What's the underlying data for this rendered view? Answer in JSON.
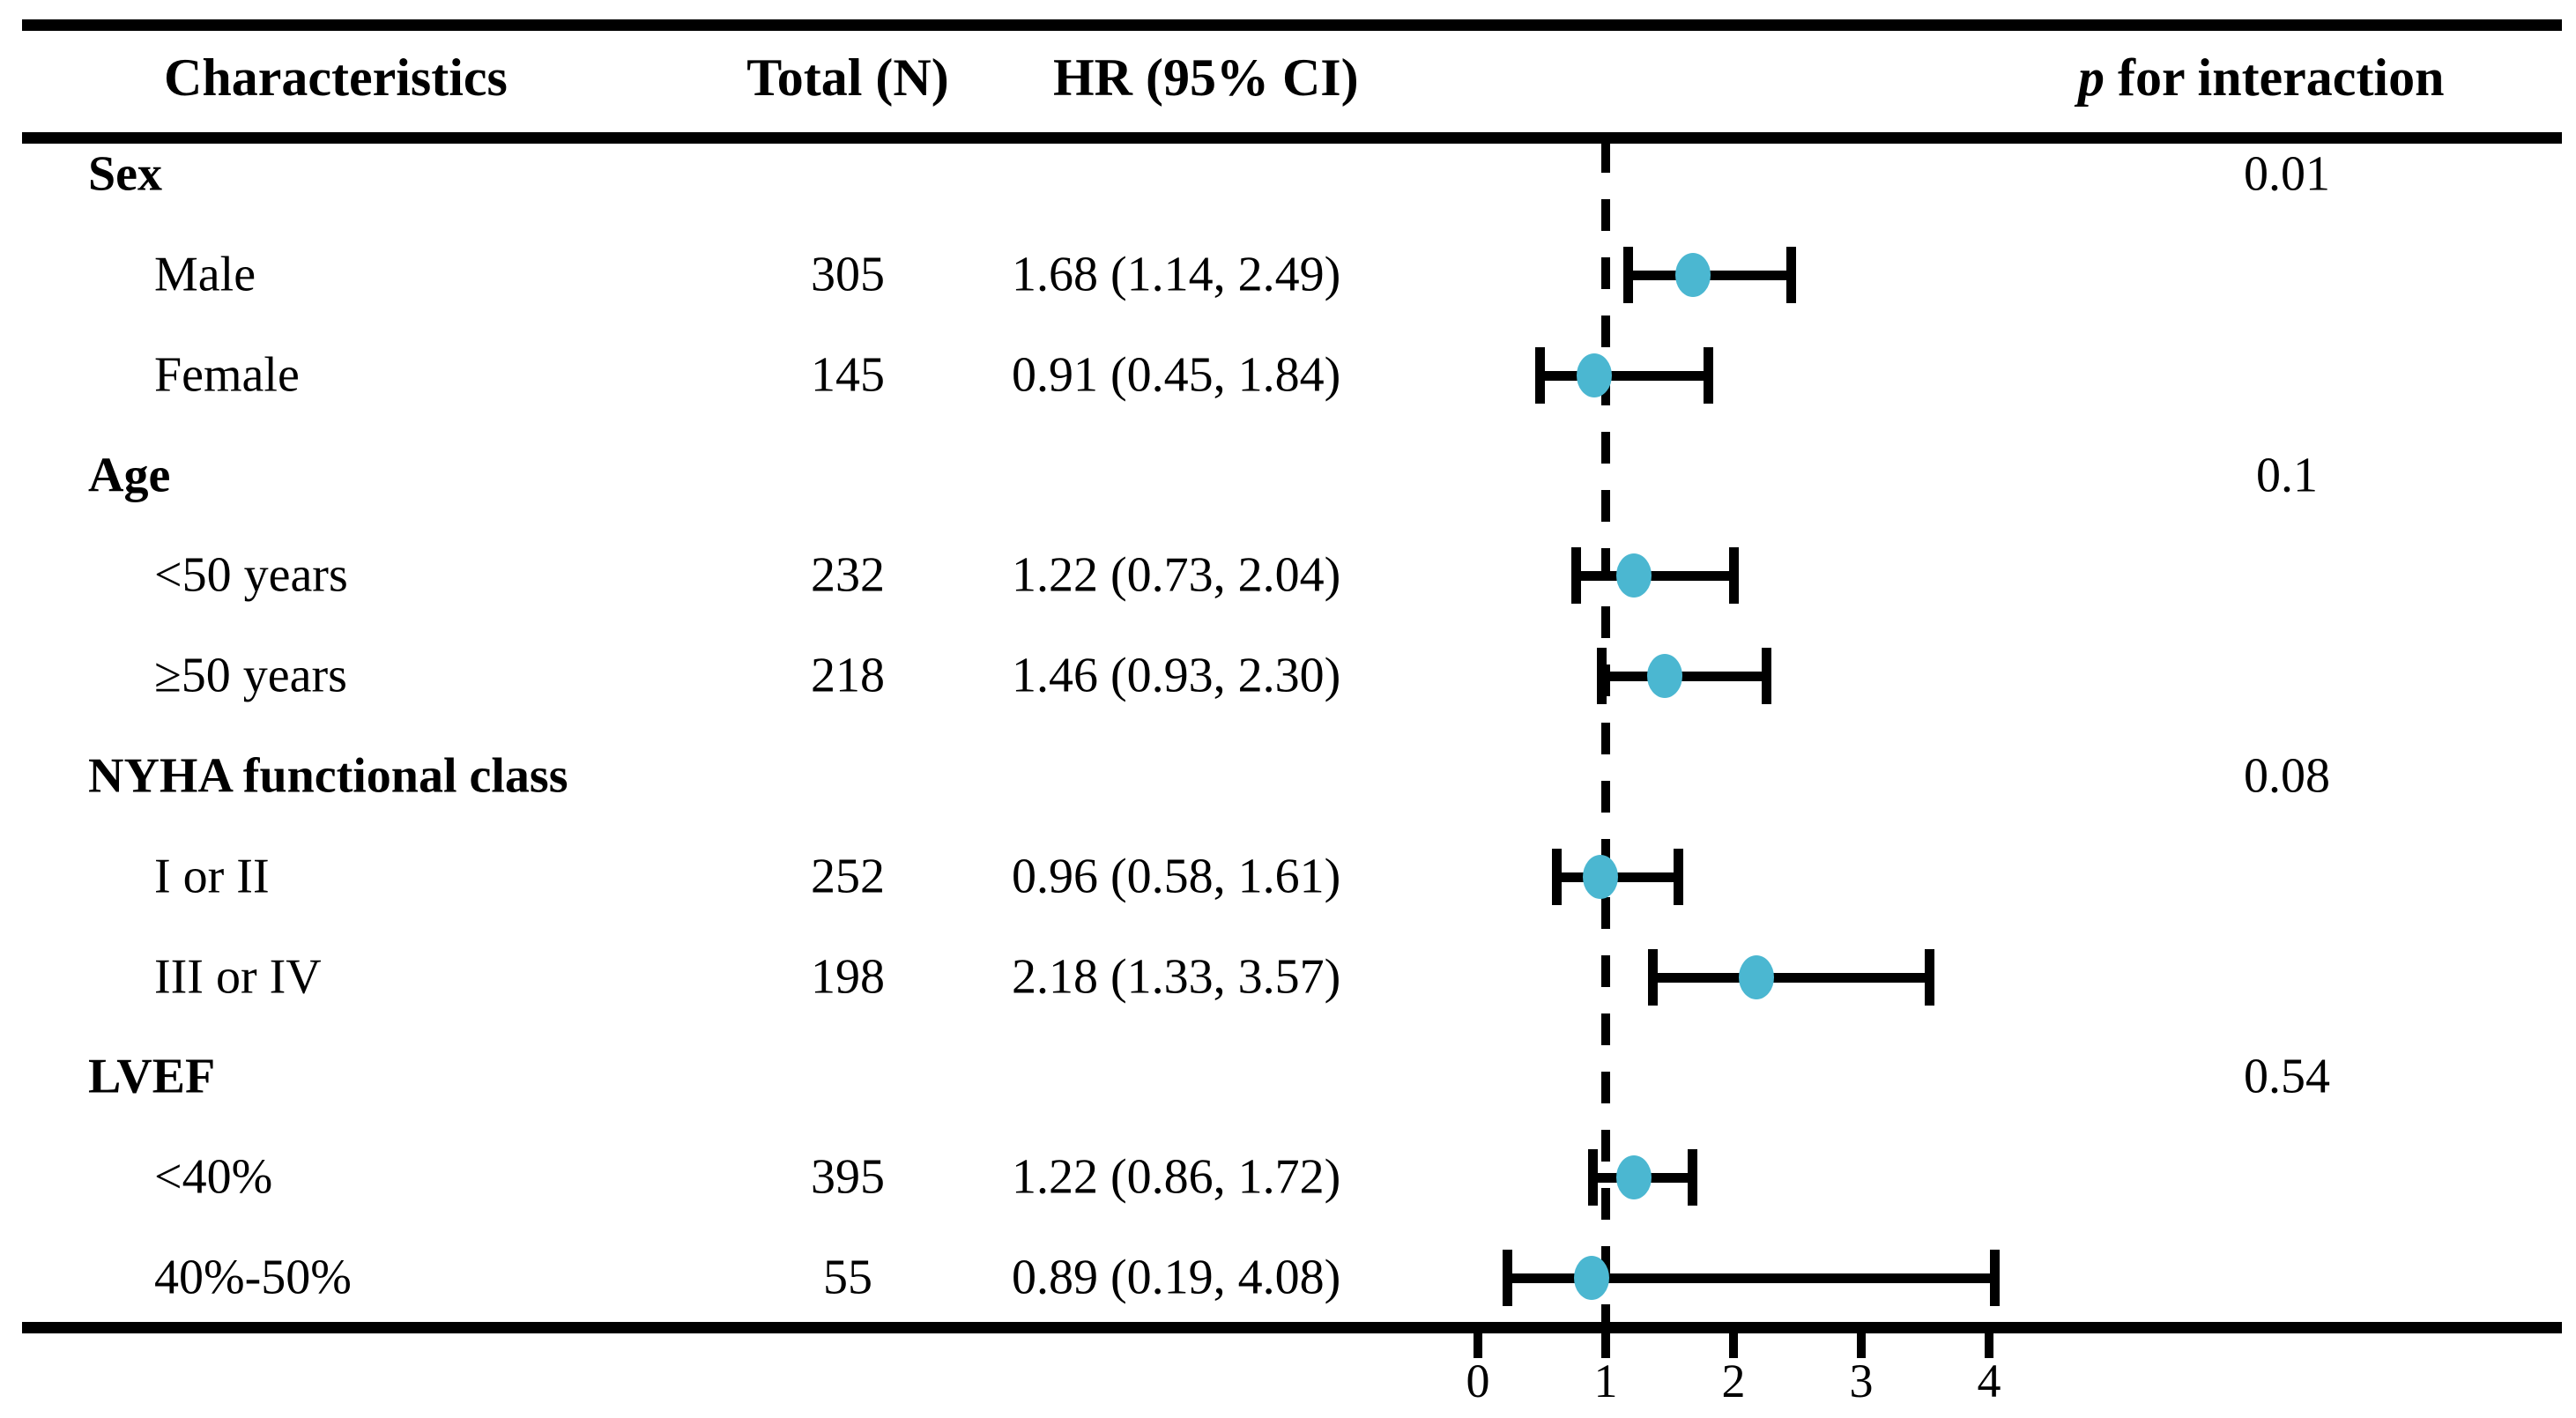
{
  "chart_data": {
    "type": "forest_plot",
    "columns": [
      "Characteristics",
      "Total (N)",
      "HR (95% CI)"
    ],
    "p_header": {
      "italic": "p",
      "rest": " for interaction"
    },
    "x_axis": {
      "ticks": [
        0,
        1,
        2,
        3,
        4
      ],
      "range": [
        0,
        4.6
      ],
      "reference_line": 1
    },
    "marker_color": "#4BB7D1",
    "groups": [
      {
        "label": "Sex",
        "p_interaction": "0.01",
        "items": [
          {
            "label": "Male",
            "total": "305",
            "hr_text": "1.68 (1.14, 2.49)",
            "hr": 1.68,
            "ci_low": 1.14,
            "ci_high": 2.49
          },
          {
            "label": "Female",
            "total": "145",
            "hr_text": "0.91 (0.45, 1.84)",
            "hr": 0.91,
            "ci_low": 0.45,
            "ci_high": 1.84
          }
        ]
      },
      {
        "label": "Age",
        "p_interaction": "0.1",
        "items": [
          {
            "label": "<50 years",
            "total": "232",
            "hr_text": "1.22 (0.73, 2.04)",
            "hr": 1.22,
            "ci_low": 0.73,
            "ci_high": 2.04
          },
          {
            "label": "≥50 years",
            "total": "218",
            "hr_text": "1.46 (0.93, 2.30)",
            "hr": 1.46,
            "ci_low": 0.93,
            "ci_high": 2.3
          }
        ]
      },
      {
        "label": "NYHA functional class",
        "p_interaction": "0.08",
        "items": [
          {
            "label": "I or II",
            "total": "252",
            "hr_text": "0.96 (0.58, 1.61)",
            "hr": 0.96,
            "ci_low": 0.58,
            "ci_high": 1.61
          },
          {
            "label": "III or IV",
            "total": "198",
            "hr_text": "2.18 (1.33, 3.57)",
            "hr": 2.18,
            "ci_low": 1.33,
            "ci_high": 3.57
          }
        ]
      },
      {
        "label": "LVEF",
        "p_interaction": "0.54",
        "items": [
          {
            "label": "<40%",
            "total": "395",
            "hr_text": "1.22 (0.86, 1.72)",
            "hr": 1.22,
            "ci_low": 0.86,
            "ci_high": 1.72
          },
          {
            "label": "40%-50%",
            "total": "55",
            "hr_text": "0.89 (0.19, 4.08)",
            "hr": 0.89,
            "ci_low": 0.19,
            "ci_high": 4.08
          }
        ]
      }
    ]
  }
}
